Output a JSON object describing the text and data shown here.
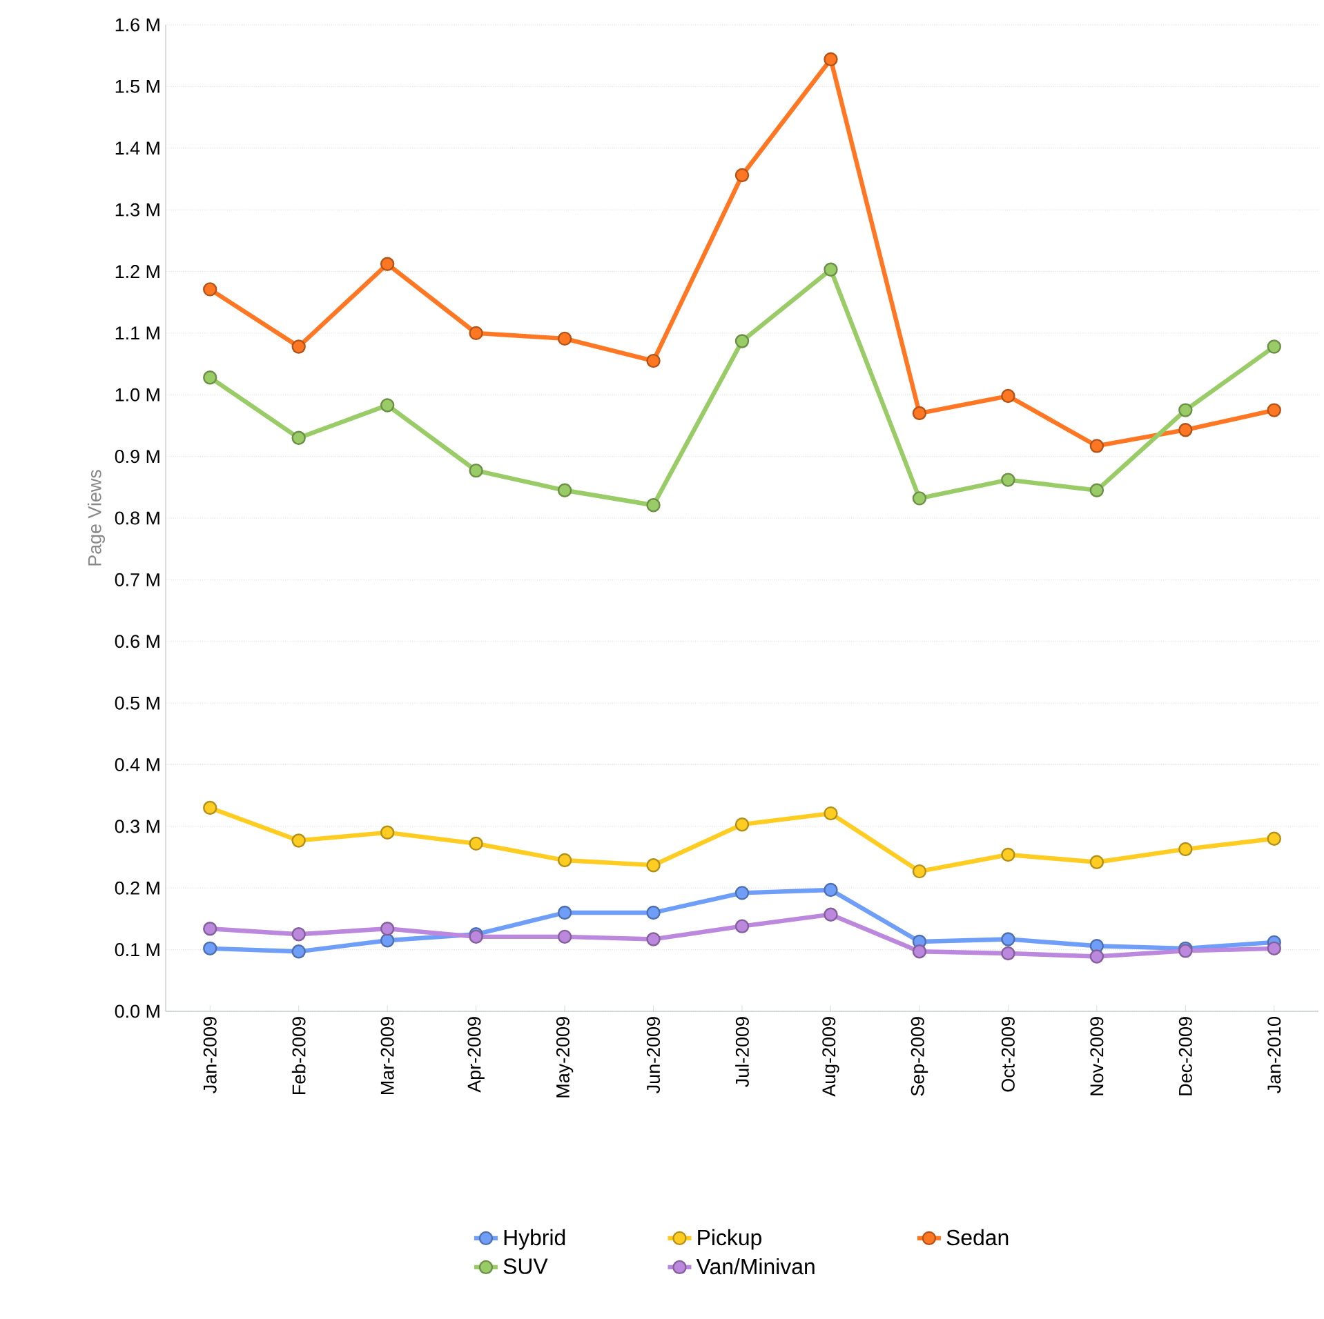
{
  "chart_data": {
    "type": "line",
    "ylabel": "Page Views",
    "categories": [
      "Jan-2009",
      "Feb-2009",
      "Mar-2009",
      "Apr-2009",
      "May-2009",
      "Jun-2009",
      "Jul-2009",
      "Aug-2009",
      "Sep-2009",
      "Oct-2009",
      "Nov-2009",
      "Dec-2009",
      "Jan-2010"
    ],
    "series": [
      {
        "name": "Hybrid",
        "color": "#6f9ef8",
        "values": [
          0.102,
          0.097,
          0.115,
          0.125,
          0.16,
          0.16,
          0.192,
          0.197,
          0.113,
          0.117,
          0.106,
          0.102,
          0.112
        ]
      },
      {
        "name": "Pickup",
        "color": "#ffcc22",
        "values": [
          0.33,
          0.277,
          0.29,
          0.272,
          0.245,
          0.237,
          0.303,
          0.321,
          0.227,
          0.254,
          0.242,
          0.263,
          0.28
        ]
      },
      {
        "name": "Sedan",
        "color": "#ff7722",
        "values": [
          1.171,
          1.078,
          1.212,
          1.1,
          1.091,
          1.055,
          1.356,
          1.544,
          0.97,
          0.998,
          0.917,
          0.943,
          0.975
        ]
      },
      {
        "name": "SUV",
        "color": "#99cc66",
        "values": [
          1.028,
          0.93,
          0.983,
          0.877,
          0.845,
          0.821,
          1.087,
          1.203,
          0.832,
          0.862,
          0.845,
          0.975,
          1.078
        ]
      },
      {
        "name": "Van/Minivan",
        "color": "#bb88dd",
        "values": [
          0.134,
          0.125,
          0.134,
          0.121,
          0.121,
          0.117,
          0.138,
          0.157,
          0.097,
          0.094,
          0.089,
          0.098,
          0.102
        ]
      }
    ],
    "ylim": [
      0,
      1.6
    ],
    "yticks": [
      {
        "value": 0,
        "label": "0.0 M"
      },
      {
        "value": 0.1,
        "label": "0.1 M"
      },
      {
        "value": 0.2,
        "label": "0.2 M"
      },
      {
        "value": 0.3,
        "label": "0.3 M"
      },
      {
        "value": 0.4,
        "label": "0.4 M"
      },
      {
        "value": 0.5,
        "label": "0.5 M"
      },
      {
        "value": 0.6,
        "label": "0.6 M"
      },
      {
        "value": 0.7,
        "label": "0.7 M"
      },
      {
        "value": 0.8,
        "label": "0.8 M"
      },
      {
        "value": 0.9,
        "label": "0.9 M"
      },
      {
        "value": 1.0,
        "label": "1.0 M"
      },
      {
        "value": 1.1,
        "label": "1.1 M"
      },
      {
        "value": 1.2,
        "label": "1.2 M"
      },
      {
        "value": 1.3,
        "label": "1.3 M"
      },
      {
        "value": 1.4,
        "label": "1.4 M"
      },
      {
        "value": 1.5,
        "label": "1.5 M"
      },
      {
        "value": 1.6,
        "label": "1.6 M"
      }
    ],
    "grid": "y",
    "legend": "bottom",
    "marker": "circle",
    "line_style": "solid"
  }
}
